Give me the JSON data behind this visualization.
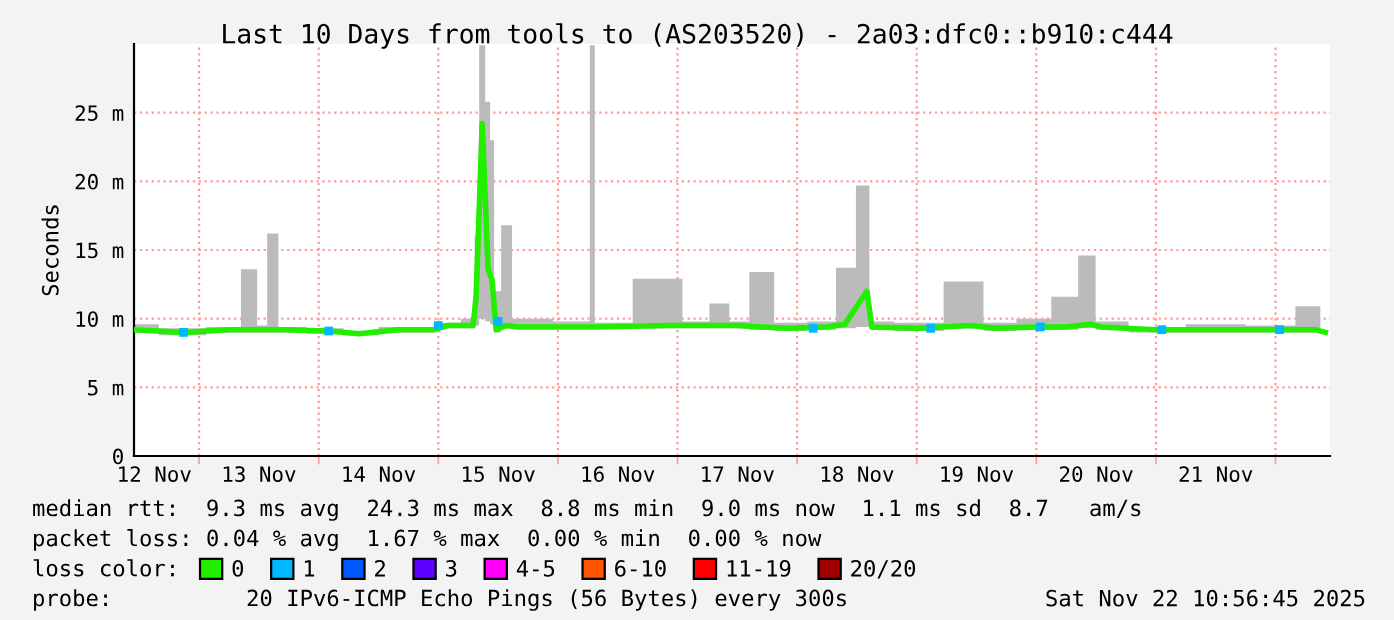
{
  "chart_data": {
    "type": "line",
    "title": "Last 10 Days from tools to (AS203520) - 2a03:dfc0::b910:c444",
    "ylabel": "Seconds",
    "xlim": [
      "2025-11-12T10:56",
      "2025-11-22T10:56"
    ],
    "xticks": [
      {
        "value": "2025-11-12T15:00",
        "label": "12 Nov"
      },
      {
        "value": "2025-11-13T12:00",
        "label": "13 Nov"
      },
      {
        "value": "2025-11-14T12:00",
        "label": "14 Nov"
      },
      {
        "value": "2025-11-15T12:00",
        "label": "15 Nov"
      },
      {
        "value": "2025-11-16T12:00",
        "label": "16 Nov"
      },
      {
        "value": "2025-11-17T12:00",
        "label": "17 Nov"
      },
      {
        "value": "2025-11-18T12:00",
        "label": "18 Nov"
      },
      {
        "value": "2025-11-19T12:00",
        "label": "19 Nov"
      },
      {
        "value": "2025-11-20T12:00",
        "label": "20 Nov"
      },
      {
        "value": "2025-11-21T12:00",
        "label": "21 Nov"
      },
      {
        "value": "2025-11-13T00:00",
        "label": null
      },
      {
        "value": "2025-11-14T00:00",
        "label": null
      },
      {
        "value": "2025-11-15T00:00",
        "label": null
      },
      {
        "value": "2025-11-16T00:00",
        "label": null
      },
      {
        "value": "2025-11-17T00:00",
        "label": null
      },
      {
        "value": "2025-11-18T00:00",
        "label": null
      },
      {
        "value": "2025-11-19T00:00",
        "label": null
      },
      {
        "value": "2025-11-20T00:00",
        "label": null
      },
      {
        "value": "2025-11-21T00:00",
        "label": null
      },
      {
        "value": "2025-11-22T00:00",
        "label": null
      }
    ],
    "ylim": [
      0,
      30
    ],
    "yticks": [
      0,
      {
        "value": 5,
        "label": "5 m"
      },
      {
        "value": 10,
        "label": "10 m"
      },
      {
        "value": 15,
        "label": "15 m"
      },
      {
        "value": 20,
        "label": "20 m"
      },
      {
        "value": 25,
        "label": "25 m"
      }
    ],
    "grid": true,
    "legend": "bottom",
    "legend_title": "loss color:",
    "series": [
      {
        "name": "0",
        "color": "#22ee00",
        "x": [
          "2025-11-12T11:00",
          "2025-11-12T20:52",
          "2025-11-13T06:00",
          "2025-11-13T10:48",
          "2025-11-13T12:30",
          "2025-11-13T14:48",
          "2025-11-13T17:00",
          "2025-11-14T02:00",
          "2025-11-14T08:00",
          "2025-11-14T16:00",
          "2025-11-14T23:00",
          "2025-11-15T02:00",
          "2025-11-15T07:00",
          "2025-11-15T07:36",
          "2025-11-15T08:48",
          "2025-11-15T10:00",
          "2025-11-15T10:48",
          "2025-11-15T11:36",
          "2025-11-15T13:36",
          "2025-11-15T16:00",
          "2025-11-16T06:00",
          "2025-11-16T06:48",
          "2025-11-16T08:00",
          "2025-11-16T22:00",
          "2025-11-17T04:00",
          "2025-11-17T08:48",
          "2025-11-17T12:00",
          "2025-11-17T16:48",
          "2025-11-17T22:00",
          "2025-11-18T06:00",
          "2025-11-18T09:36",
          "2025-11-18T14:00",
          "2025-11-18T15:00",
          "2025-11-19T00:00",
          "2025-11-19T10:48",
          "2025-11-19T16:00",
          "2025-11-20T00:00",
          "2025-11-20T06:00",
          "2025-11-20T10:48",
          "2025-11-20T13:00",
          "2025-11-21T00:00",
          "2025-11-21T12:00",
          "2025-11-22T00:00",
          "2025-11-22T08:00",
          "2025-11-22T10:00"
        ],
        "values": [
          9.2,
          9.0,
          9.2,
          9.2,
          9.2,
          9.2,
          9.2,
          9.1,
          8.9,
          9.2,
          9.2,
          9.5,
          9.5,
          11.7,
          24.2,
          13.6,
          12.8,
          9.2,
          9.5,
          9.4,
          9.4,
          9.4,
          9.4,
          9.5,
          9.5,
          9.5,
          9.5,
          9.4,
          9.3,
          9.4,
          9.6,
          12.0,
          9.4,
          9.3,
          9.5,
          9.3,
          9.4,
          9.4,
          9.6,
          9.4,
          9.2,
          9.2,
          9.2,
          9.2,
          9.0
        ],
        "lower": [
          9.0,
          8.8,
          9.0,
          9.0,
          9.0,
          9.0,
          9.0,
          8.9,
          8.8,
          9.0,
          9.0,
          9.3,
          9.3,
          9.5,
          10.0,
          9.8,
          9.6,
          9.0,
          9.3,
          9.3,
          9.3,
          9.3,
          9.3,
          9.3,
          9.3,
          9.3,
          9.3,
          9.2,
          9.1,
          9.2,
          9.3,
          9.4,
          9.2,
          9.1,
          9.3,
          9.1,
          9.2,
          9.2,
          9.3,
          9.2,
          9.0,
          9.0,
          9.0,
          9.0,
          8.9
        ],
        "upper": [
          9.6,
          9.3,
          9.4,
          13.6,
          9.5,
          16.2,
          9.4,
          9.3,
          9.1,
          9.4,
          9.4,
          9.7,
          10.0,
          16.0,
          29.9,
          25.8,
          23.0,
          12.0,
          16.8,
          10.0,
          9.8,
          29.9,
          9.7,
          12.9,
          9.8,
          11.1,
          9.8,
          13.4,
          9.7,
          9.8,
          13.7,
          19.7,
          9.8,
          9.7,
          12.7,
          9.7,
          10.0,
          11.6,
          14.6,
          9.8,
          9.4,
          9.6,
          9.5,
          10.9,
          9.2
        ]
      },
      {
        "name": "1",
        "color": "#00b8ff",
        "type": "scatter",
        "marker": "square",
        "x": [
          "2025-11-12T20:52",
          "2025-11-14T02:00",
          "2025-11-15T00:00",
          "2025-11-15T12:00",
          "2025-11-18T03:12",
          "2025-11-19T02:48",
          "2025-11-20T00:48",
          "2025-11-21T01:12",
          "2025-11-22T00:48"
        ],
        "values": [
          9.0,
          9.1,
          9.5,
          9.8,
          9.3,
          9.3,
          9.4,
          9.2,
          9.2
        ]
      },
      {
        "name": "2",
        "color": "#0059ff"
      },
      {
        "name": "3",
        "color": "#5e00ff"
      },
      {
        "name": "4-5",
        "color": "#ff00ff"
      },
      {
        "name": "6-10",
        "color": "#ff5500"
      },
      {
        "name": "11-19",
        "color": "#ff0000"
      },
      {
        "name": "20/20",
        "color": "#a10000"
      }
    ],
    "annotations": [
      "median rtt:  9.3 ms avg  24.3 ms max  8.8 ms min  9.0 ms now  1.1 ms sd  8.7   am/s",
      "packet loss: 0.04 % avg  1.67 % max  0.00 % min  0.00 % now",
      "probe:          20 IPv6-ICMP Echo Pings (56 Bytes) every 300s",
      "Sat Nov 22 10:56:45 2025"
    ]
  }
}
